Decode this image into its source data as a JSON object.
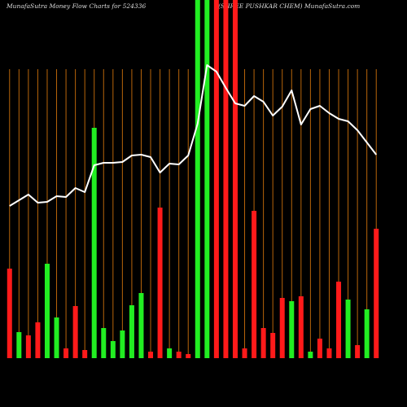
{
  "chart_data": {
    "type": "bar-line",
    "title": "MunafaSutra  Money Flow  Charts for 524336",
    "subtitle": "(SHREE PUSHKAR CHEM) MunafaSutra.com",
    "categories": [
      null,
      null,
      null,
      null,
      null,
      null,
      null,
      null,
      null,
      null,
      null,
      null,
      null,
      null,
      null,
      null,
      null,
      null,
      null,
      null,
      null,
      null,
      null,
      null,
      null,
      null,
      null,
      null,
      null,
      null,
      null,
      null,
      null,
      null,
      null,
      null,
      null,
      null,
      null,
      null
    ],
    "ylim": [
      0,
      440
    ],
    "series": [
      {
        "kind": "bar",
        "values": [
          110,
          32,
          28,
          44,
          116,
          50,
          12,
          64,
          10,
          283,
          37,
          21,
          34,
          65,
          80,
          8,
          185,
          12,
          8,
          5,
          440,
          440,
          440,
          440,
          440,
          12,
          181,
          37,
          31,
          74,
          70,
          76,
          8,
          24,
          12,
          94,
          72,
          16,
          60,
          159
        ],
        "colors": [
          "#ff1a1a",
          "#22ee22",
          "#ff1a1a",
          "#ff1a1a",
          "#22ee22",
          "#22ee22",
          "#ff1a1a",
          "#ff1a1a",
          "#ff1a1a",
          "#22ee22",
          "#22ee22",
          "#22ee22",
          "#22ee22",
          "#22ee22",
          "#22ee22",
          "#ff1a1a",
          "#ff1a1a",
          "#22ee22",
          "#ff1a1a",
          "#ff1a1a",
          "#22ee22",
          "#22ee22",
          "#ff1a1a",
          "#ff1a1a",
          "#ff1a1a",
          "#ff1a1a",
          "#ff1a1a",
          "#ff1a1a",
          "#ff1a1a",
          "#ff1a1a",
          "#22ee22",
          "#ff1a1a",
          "#22ee22",
          "#ff1a1a",
          "#ff1a1a",
          "#ff1a1a",
          "#22ee22",
          "#ff1a1a",
          "#22ee22",
          "#ff1a1a"
        ]
      },
      {
        "kind": "line",
        "color": "#ffffff",
        "values": [
          187,
          194,
          201,
          191,
          192,
          199,
          198,
          209,
          204,
          237,
          240,
          240,
          241,
          249,
          250,
          247,
          228,
          239,
          238,
          249,
          288,
          360,
          352,
          332,
          313,
          310,
          322,
          315,
          298,
          309,
          329,
          287,
          306,
          310,
          301,
          294,
          291,
          280,
          265,
          250
        ]
      }
    ],
    "gridline_color": "#b8650a"
  }
}
